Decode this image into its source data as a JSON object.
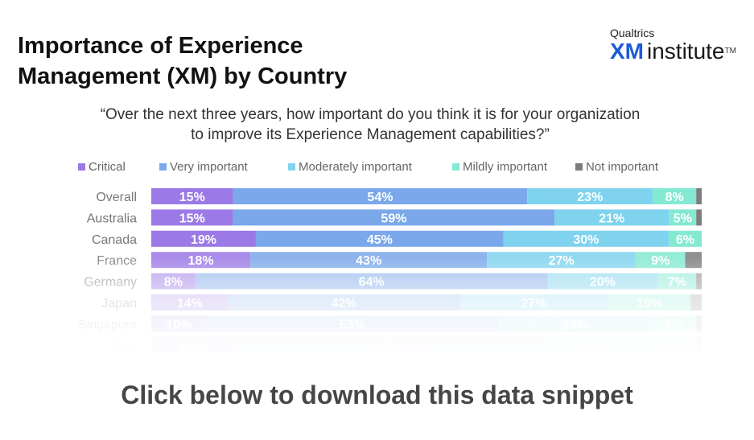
{
  "header": {
    "title_line1": "Importance of Experience",
    "title_line2": "Management (XM) by Country"
  },
  "logo": {
    "top": "Qualtrics",
    "xm": "XM",
    "institute": "institute",
    "tm": "TM"
  },
  "question": {
    "line1": "“Over the next three years, how important do you think it is for your organization",
    "line2": "to improve its Experience Management capabilities?”"
  },
  "cta": {
    "label": "Click below to download this data snippet"
  },
  "chart_data": {
    "type": "bar",
    "orientation": "horizontal",
    "stacked": true,
    "percent_of_total": true,
    "legend_position": "top",
    "grid": false,
    "categories": [
      "Overall",
      "Australia",
      "Canada",
      "France",
      "Germany",
      "Japan",
      "Singapore",
      "U.K."
    ],
    "series": [
      {
        "name": "Critical",
        "color": "#9b79e6",
        "values": [
          15,
          15,
          19,
          18,
          8,
          14,
          10,
          15
        ]
      },
      {
        "name": "Very important",
        "color": "#7aa8ea",
        "values": [
          54,
          59,
          45,
          43,
          64,
          42,
          53,
          57
        ]
      },
      {
        "name": "Moderately important",
        "color": "#7fd3ee",
        "values": [
          23,
          21,
          30,
          27,
          20,
          27,
          28,
          20
        ]
      },
      {
        "name": "Mildly important",
        "color": "#83e9d2",
        "values": [
          8,
          5,
          6,
          9,
          7,
          15,
          8,
          8
        ]
      },
      {
        "name": "Not important",
        "color": "#7d7d7d",
        "values": [
          1,
          1,
          0,
          3,
          1,
          2,
          1,
          1
        ]
      }
    ],
    "label_series": [
      "Critical",
      "Very important",
      "Moderately important",
      "Mildly important"
    ],
    "label_format": "%"
  }
}
